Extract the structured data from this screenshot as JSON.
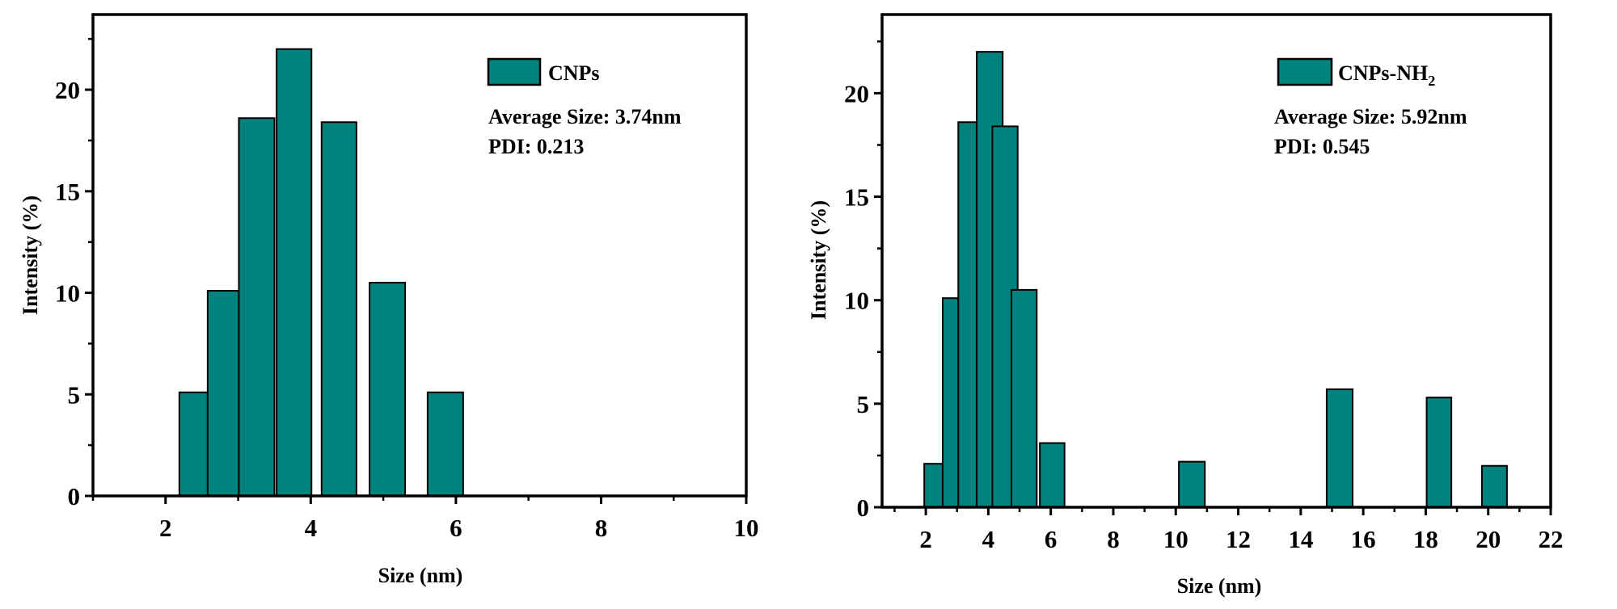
{
  "chart_data": [
    {
      "type": "bar",
      "title": "",
      "xlabel": "Size (nm)",
      "ylabel": "Intensity (%)",
      "xlim": [
        1,
        10
      ],
      "ylim": [
        0,
        23.7
      ],
      "xticks": [
        2,
        4,
        6,
        8,
        10
      ],
      "xminor": [
        1,
        3,
        5,
        7,
        9
      ],
      "yticks": [
        0,
        5,
        10,
        15,
        20
      ],
      "yminor": [
        2.5,
        7.5,
        12.5,
        17.5,
        22.5
      ],
      "grid": false,
      "legend": {
        "label": "CNPs",
        "position": "top-right"
      },
      "annotations": [
        "Average Size: 3.74nm",
        "PDI: 0.213"
      ],
      "color": "#00827f",
      "bars": [
        {
          "x0": 2.19,
          "x1": 2.58,
          "value": 5.1
        },
        {
          "x0": 2.58,
          "x1": 3.01,
          "value": 10.1
        },
        {
          "x0": 3.01,
          "x1": 3.5,
          "value": 18.6
        },
        {
          "x0": 3.53,
          "x1": 4.01,
          "value": 22.0
        },
        {
          "x0": 4.15,
          "x1": 4.63,
          "value": 18.4
        },
        {
          "x0": 4.81,
          "x1": 5.3,
          "value": 10.5
        },
        {
          "x0": 5.61,
          "x1": 6.1,
          "value": 5.1
        }
      ]
    },
    {
      "type": "bar",
      "title": "",
      "xlabel": "Size (nm)",
      "ylabel": "Intensity (%)",
      "xlim": [
        0.6,
        22
      ],
      "ylim": [
        0,
        23.8
      ],
      "xticks": [
        2,
        4,
        6,
        8,
        10,
        12,
        14,
        16,
        18,
        20,
        22
      ],
      "xminor": [
        1,
        3,
        5,
        7,
        9,
        11,
        13,
        15,
        17,
        19,
        21
      ],
      "yticks": [
        0,
        5,
        10,
        15,
        20
      ],
      "yminor": [
        2.5,
        7.5,
        12.5,
        17.5,
        22.5
      ],
      "grid": false,
      "legend": {
        "label": "CNPs-NH",
        "subscript": "2",
        "position": "top-right"
      },
      "annotations": [
        "Average Size: 5.92nm",
        "PDI: 0.545"
      ],
      "color": "#00827f",
      "bars": [
        {
          "x0": 1.95,
          "x1": 2.54,
          "value": 2.1
        },
        {
          "x0": 2.54,
          "x1": 3.04,
          "value": 10.1
        },
        {
          "x0": 3.04,
          "x1": 3.63,
          "value": 18.6
        },
        {
          "x0": 3.63,
          "x1": 4.46,
          "value": 22.0
        },
        {
          "x0": 4.13,
          "x1": 4.94,
          "value": 18.4
        },
        {
          "x0": 4.74,
          "x1": 5.55,
          "value": 10.5
        },
        {
          "x0": 5.65,
          "x1": 6.44,
          "value": 3.1
        },
        {
          "x0": 10.1,
          "x1": 10.93,
          "value": 2.2
        },
        {
          "x0": 14.83,
          "x1": 15.66,
          "value": 5.7
        },
        {
          "x0": 18.03,
          "x1": 18.82,
          "value": 5.3
        },
        {
          "x0": 19.8,
          "x1": 20.6,
          "value": 2.0
        }
      ]
    }
  ]
}
